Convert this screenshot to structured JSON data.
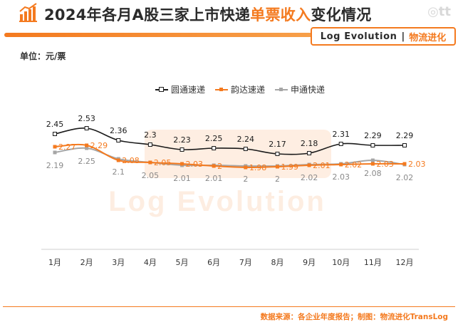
{
  "header": {
    "title_pre": "2024年各月A股三家上市快递",
    "title_highlight": "单票收入",
    "title_post": "变化情况",
    "brand_en": "Log Evolution",
    "brand_sep": "|",
    "brand_cn": "物流进化"
  },
  "unit_label": "单位：元/票",
  "footer": {
    "source": "数据来源：各企业年度报告；制图：物流进化TransLog"
  },
  "colors": {
    "accent": "#f47a1f",
    "yuantong": "#1a1a1a",
    "yunda": "#f47a1f",
    "shentong": "#a6a6a6"
  },
  "chart_data": {
    "type": "line",
    "title": "2024年各月A股三家上市快递单票收入变化情况",
    "categories": [
      "1月",
      "2月",
      "3月",
      "4月",
      "5月",
      "6月",
      "7月",
      "8月",
      "9月",
      "10月",
      "11月",
      "12月"
    ],
    "ylabel": "元/票",
    "ylim": [
      1.6,
      2.8
    ],
    "grid": false,
    "legend_position": "top-center",
    "series": [
      {
        "name": "圆通速递",
        "values": [
          2.45,
          2.53,
          2.36,
          2.3,
          2.23,
          2.25,
          2.24,
          2.17,
          2.18,
          2.31,
          2.29,
          2.29
        ]
      },
      {
        "name": "韵达速递",
        "values": [
          2.27,
          2.29,
          2.08,
          2.05,
          2.03,
          2,
          1.98,
          1.99,
          2.01,
          2.02,
          2.03,
          2.03
        ]
      },
      {
        "name": "申通快递",
        "values": [
          2.19,
          2.25,
          2.1,
          2.05,
          2.01,
          2.01,
          2,
          2,
          2.02,
          2.03,
          2.08,
          2.02
        ]
      }
    ]
  }
}
